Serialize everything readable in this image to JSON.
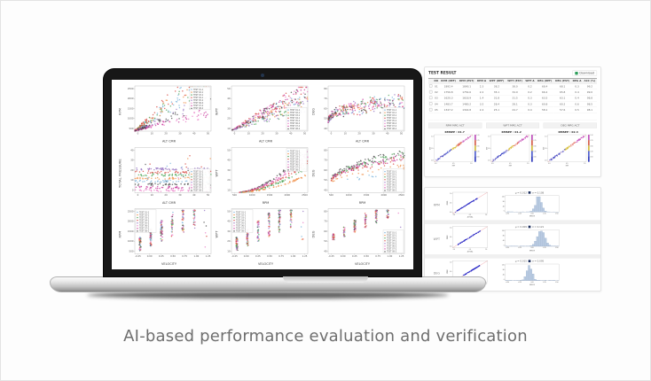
{
  "caption": "AI-based performance evaluation and verification",
  "colors": {
    "series": [
      "#7cb4dc",
      "#f0924c",
      "#53a85c",
      "#d84b44",
      "#9a79c4",
      "#ea7fc8",
      "#c93f9f",
      "#4d4d4d"
    ],
    "identity_line": "#e0474c",
    "dot_blue": "#2a2ac8",
    "hist_fill": "#b9cbe2",
    "hist_edge": "#7e97ba",
    "download_icon_green": "#2e9e5b",
    "marker_navy": "#1d2f5e"
  },
  "chart_data": {
    "legend_labels": [
      "TEST 01-1",
      "TEST 02-1",
      "TEST 03-1",
      "TEST 04-1",
      "TEST 05-2",
      "TEST 06-2",
      "TEST 07-2",
      "TEST 08-2"
    ],
    "screen_plots": [
      {
        "type": "scatter",
        "pattern": "fan",
        "ylabel": "RPM",
        "xlabel": "ALT CMR",
        "yticks": [
          "500",
          "1000",
          "1500",
          "2000",
          "2500"
        ],
        "xticks": [
          "0",
          "10",
          "20",
          "30",
          "40",
          "50"
        ],
        "legend_pos": "tr",
        "seed": 11
      },
      {
        "type": "scatter",
        "pattern": "fan2",
        "ylabel": "WPT",
        "xlabel": "ALT CMR",
        "yticks": [
          "10",
          "20",
          "30",
          "40",
          "50"
        ],
        "xticks": [
          "0",
          "10",
          "20",
          "30",
          "40",
          "50"
        ],
        "legend_pos": "br",
        "seed": 22
      },
      {
        "type": "scatter",
        "pattern": "blob",
        "ylabel": "DEG",
        "xlabel": "ALT CMR",
        "yticks": [
          "40",
          "50",
          "60",
          "70",
          "80"
        ],
        "xticks": [
          "0",
          "10",
          "20",
          "30",
          "40",
          "50"
        ],
        "legend_pos": "br",
        "seed": 33
      },
      {
        "type": "scatter",
        "pattern": "bands",
        "ylabel": "TOTAL PRESSURE",
        "xlabel": "ALT CMR",
        "yticks": [
          "0",
          "10",
          "20",
          "30",
          "40"
        ],
        "xticks": [
          "0",
          "10",
          "20",
          "30",
          "40",
          "50"
        ],
        "legend_pos": "br",
        "seed": 44
      },
      {
        "type": "scatter",
        "pattern": "curves",
        "ylabel": "WPT",
        "xlabel": "RPM",
        "yticks": [
          "10",
          "20",
          "30",
          "40",
          "50"
        ],
        "xticks": [
          "500",
          "1000",
          "1500",
          "2000",
          "2500"
        ],
        "legend_pos": "tr",
        "seed": 55
      },
      {
        "type": "scatter",
        "pattern": "concave",
        "ylabel": "DEG",
        "xlabel": "RPM",
        "yticks": [
          "40",
          "50",
          "60",
          "70",
          "80"
        ],
        "xticks": [
          "500",
          "1000",
          "1500",
          "2000",
          "2500"
        ],
        "legend_pos": "br",
        "seed": 66
      },
      {
        "type": "scatter",
        "pattern": "columns",
        "ylabel": "RPM",
        "xlabel": "VELOCITY",
        "yticks": [
          "500",
          "1000",
          "1500",
          "2000",
          "2500"
        ],
        "xticks": [
          "-0.25",
          "0.00",
          "0.25",
          "0.50",
          "0.75",
          "1.00",
          "1.25"
        ],
        "legend_pos": "tl",
        "seed": 77
      },
      {
        "type": "scatter",
        "pattern": "columns",
        "ylabel": "WPT",
        "xlabel": "VELOCITY",
        "yticks": [
          "10",
          "20",
          "30",
          "40",
          "50"
        ],
        "xticks": [
          "-0.25",
          "0.00",
          "0.25",
          "0.50",
          "0.75",
          "1.00",
          "1.25"
        ],
        "legend_pos": "tl",
        "seed": 88
      },
      {
        "type": "scatter",
        "pattern": "columns2",
        "ylabel": "DEG",
        "xlabel": "VELOCITY",
        "yticks": [
          "40",
          "50",
          "60",
          "70",
          "80"
        ],
        "xticks": [
          "-0.25",
          "0.00",
          "0.25",
          "0.50",
          "0.75",
          "1.00",
          "1.25"
        ],
        "legend_pos": "br",
        "seed": 99
      }
    ],
    "mini_plots": [
      {
        "type": "scatter",
        "title": "RMSEP : 01.7",
        "ylabel": "EST",
        "xlabel": "REF",
        "xticks": [
          "0.0",
          "0.5",
          "1.0"
        ],
        "yticks": [
          "0.0",
          "0.5",
          "1.0"
        ],
        "cbar": [
          "1.00",
          "0.75",
          "0.50",
          "0.25",
          "0.00"
        ],
        "seed": 101
      },
      {
        "type": "scatter",
        "title": "RMSEP : 01.2",
        "ylabel": "EST",
        "xlabel": "REF",
        "xticks": [
          "0.0",
          "0.5",
          "1.0"
        ],
        "yticks": [
          "0.0",
          "0.5",
          "1.0"
        ],
        "cbar": [
          "1.00",
          "0.75",
          "0.50",
          "0.25",
          "0.00"
        ],
        "seed": 102
      },
      {
        "type": "scatter",
        "title": "RMSEP : 02.4",
        "ylabel": "EST",
        "xlabel": "REF",
        "xticks": [
          "0.0",
          "0.5",
          "1.0"
        ],
        "yticks": [
          "0.0",
          "0.5",
          "1.0"
        ],
        "cbar": [
          "1.00",
          "0.75",
          "0.50",
          "0.25",
          "0.00"
        ],
        "seed": 103
      }
    ],
    "verify_rows": [
      {
        "label": "RPM",
        "scatter": {
          "type": "scatter",
          "ylabel": "PRED",
          "xlabel": "ACTUAL",
          "xticks": [
            "0.0",
            "0.5",
            "1.0"
          ],
          "yticks": [
            "0.0",
            "0.5",
            "1.0"
          ],
          "lo": 0.08,
          "hi": 0.72,
          "seed": 7
        },
        "hist": {
          "type": "bar",
          "title_mean": "μ = 0.012",
          "title_std": "σ = 0.108",
          "xlabel": "ERROR",
          "xticks": [
            "-0.50",
            "-0.25",
            "0.00",
            "0.25",
            "0.50"
          ],
          "yticks": [
            "0",
            "40",
            "80",
            "120"
          ],
          "mu": 0.62,
          "sigma": 0.055,
          "seed": 301
        }
      },
      {
        "label": "WPT",
        "scatter": {
          "type": "scatter",
          "ylabel": "PRED",
          "xlabel": "ACTUAL",
          "xticks": [
            "0.0",
            "0.5",
            "1.0"
          ],
          "yticks": [
            "0.0",
            "0.5",
            "1.0"
          ],
          "lo": 0.15,
          "hi": 0.8,
          "seed": 8
        },
        "hist": {
          "type": "bar",
          "title_mean": "μ = 0.009",
          "title_std": "σ = 0.121",
          "xlabel": "ERROR",
          "xticks": [
            "-0.50",
            "-0.25",
            "0.00",
            "0.25",
            "0.50"
          ],
          "yticks": [
            "0",
            "40",
            "80",
            "120"
          ],
          "mu": 0.66,
          "sigma": 0.07,
          "seed": 302
        }
      },
      {
        "label": "DEG",
        "scatter": {
          "type": "scatter",
          "ylabel": "PRED",
          "xlabel": "ACTUAL",
          "xticks": [
            "0.0",
            "0.5",
            "1.0"
          ],
          "yticks": [
            "0.0",
            "0.5",
            "1.0"
          ],
          "lo": 0.3,
          "hi": 0.78,
          "seed": 9
        },
        "hist": {
          "type": "bar",
          "title_mean": "μ = 0.015",
          "title_std": "σ = 0.095",
          "xlabel": "ERROR",
          "xticks": [
            "-0.50",
            "-0.25",
            "0.00",
            "0.25",
            "0.50"
          ],
          "yticks": [
            "0",
            "40",
            "80",
            "120"
          ],
          "mu": 0.45,
          "sigma": 0.05,
          "seed": 303
        }
      }
    ]
  },
  "right_panel": {
    "card1": {
      "title": "TEST RESULT",
      "download_label": "Download",
      "table": {
        "headers": [
          "",
          "NO",
          "RPM (REF)",
          "RPM (EST)",
          "RPM Δ",
          "WPT (REF)",
          "WPT (EST)",
          "WPT Δ",
          "DEG (REF)",
          "DEG (EST)",
          "DEG Δ",
          "ACC (%)"
        ],
        "rows": [
          [
            "",
            "01",
            "1892.4",
            "1890.1",
            "2.3",
            "38.2",
            "38.0",
            "0.2",
            "68.4",
            "68.1",
            "0.3",
            "99.2"
          ],
          [
            "",
            "02",
            "1756.8",
            "1754.6",
            "2.2",
            "35.1",
            "34.9",
            "0.2",
            "66.2",
            "65.8",
            "0.4",
            "99.0"
          ],
          [
            "",
            "03",
            "1620.3",
            "1618.9",
            "1.4",
            "31.8",
            "31.5",
            "0.3",
            "63.5",
            "63.1",
            "0.4",
            "98.8"
          ],
          [
            "",
            "04",
            "1483.7",
            "1480.2",
            "3.5",
            "28.4",
            "28.1",
            "0.3",
            "60.8",
            "60.2",
            "0.6",
            "98.5"
          ],
          [
            "",
            "05",
            "1347.2",
            "1344.8",
            "2.4",
            "25.1",
            "24.7",
            "0.4",
            "58.1",
            "57.6",
            "0.5",
            "98.1"
          ]
        ]
      },
      "strip_labels": [
        "RPM MPG ACT",
        "WPT MPG ACT",
        "DEG MPG ACT"
      ]
    }
  }
}
